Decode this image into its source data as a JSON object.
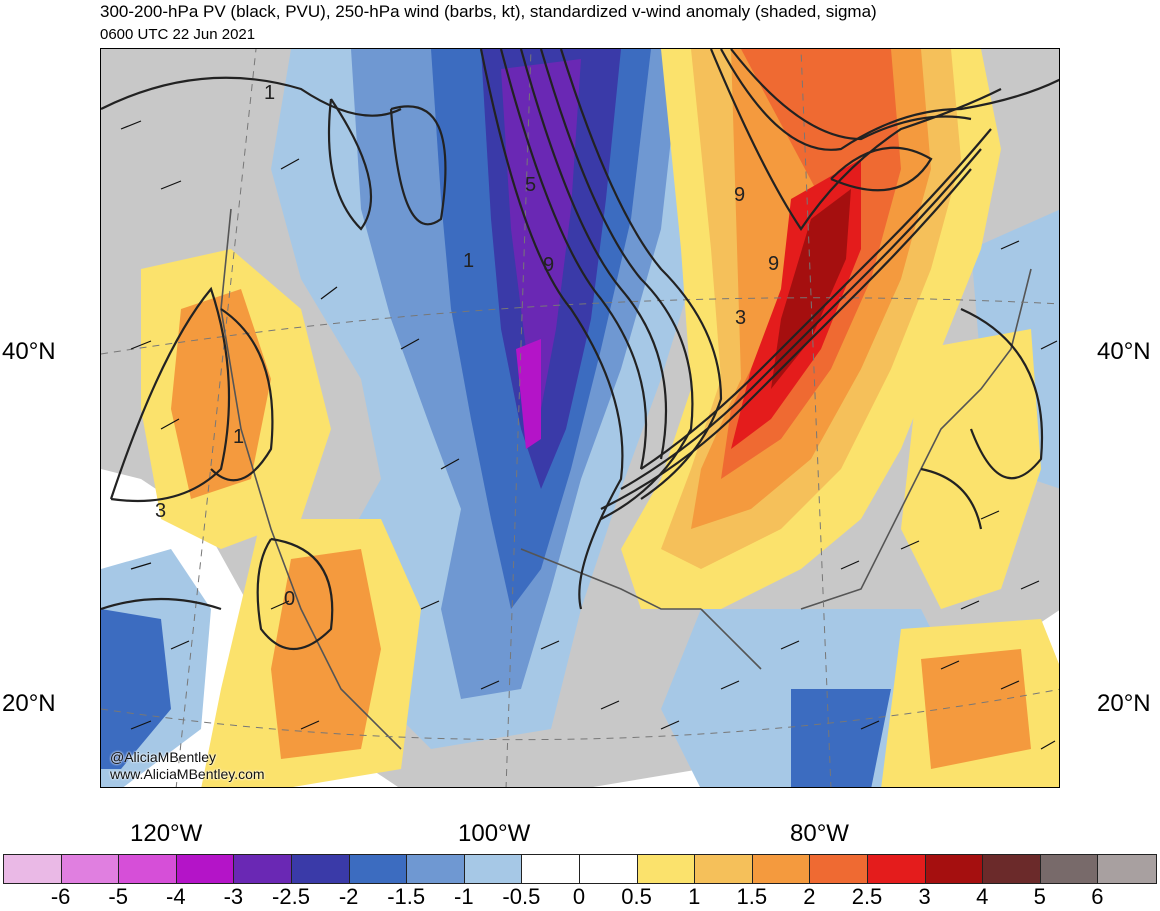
{
  "header": {
    "title": "300-200-hPa PV (black, PVU), 250-hPa wind (barbs, kt), standardized v-wind anomaly (shaded, sigma)",
    "subtitle": "0600 UTC 22 Jun 2021"
  },
  "axes": {
    "lat_left": [
      "40°N",
      "20°N"
    ],
    "lat_right": [
      "40°N",
      "20°N"
    ],
    "lon": [
      "120°W",
      "100°W",
      "80°W"
    ]
  },
  "contour_labels": [
    "1",
    "5",
    "9",
    "1",
    "9",
    "1",
    "3",
    "0",
    "9",
    "3"
  ],
  "credits": {
    "handle": "@AliciaMBentley",
    "site": "www.AliciaMBentley.com"
  },
  "colorbar": {
    "colors": [
      "#eab9e6",
      "#e07fe0",
      "#d64fd8",
      "#b414c8",
      "#6a28b4",
      "#3a3aa8",
      "#3c6cc0",
      "#6f98d2",
      "#a6c8e6",
      "#ffffff",
      "#ffffff",
      "#fbe26c",
      "#f5c05a",
      "#f49a3e",
      "#ef6a32",
      "#e41c1c",
      "#a50f0f",
      "#6b2a2a",
      "#786a6a",
      "#a8a0a0"
    ],
    "labels": [
      "-6",
      "-5",
      "-4",
      "-3",
      "-2.5",
      "-2",
      "-1.5",
      "-1",
      "-0.5",
      "0",
      "0.5",
      "1",
      "1.5",
      "2",
      "2.5",
      "3",
      "4",
      "5",
      "6"
    ]
  },
  "colors": {
    "land": "#c8c8c8",
    "neg_1": "#a6c8e6",
    "neg_2": "#6f98d2",
    "neg_3": "#3c6cc0",
    "neg_4": "#3a3aa8",
    "neg_5": "#6a28b4",
    "neg_6": "#b414c8",
    "pos_1": "#fbe26c",
    "pos_2": "#f5c05a",
    "pos_3": "#f49a3e",
    "pos_4": "#ef6a32",
    "pos_5": "#e41c1c",
    "pos_6": "#a50f0f"
  }
}
